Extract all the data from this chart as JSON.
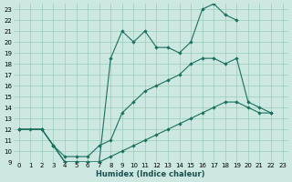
{
  "xlabel": "Humidex (Indice chaleur)",
  "bg_color": "#cce8e0",
  "grid_color": "#99ccbb",
  "line_color": "#1a7060",
  "xlim": [
    -0.5,
    23.5
  ],
  "ylim": [
    9,
    23.5
  ],
  "xticks": [
    0,
    1,
    2,
    3,
    4,
    5,
    6,
    7,
    8,
    9,
    10,
    11,
    12,
    13,
    14,
    15,
    16,
    17,
    18,
    19,
    20,
    21,
    22,
    23
  ],
  "yticks": [
    9,
    10,
    11,
    12,
    13,
    14,
    15,
    16,
    17,
    18,
    19,
    20,
    21,
    22,
    23
  ],
  "line1": {
    "x": [
      0,
      1,
      2,
      3,
      4,
      5,
      6,
      7,
      8,
      9,
      10,
      11,
      12,
      13,
      14,
      15,
      16,
      17,
      18,
      19,
      20,
      21,
      22
    ],
    "y": [
      12,
      12,
      12,
      10.5,
      9,
      9,
      9,
      9,
      9.5,
      10,
      10.5,
      11,
      11.5,
      12,
      12.5,
      13,
      13.5,
      14,
      14.5,
      14.5,
      14,
      13.5,
      13.5
    ]
  },
  "line2": {
    "x": [
      0,
      2,
      3,
      4,
      5,
      6,
      7,
      8,
      9,
      10,
      11,
      12,
      13,
      14,
      15,
      16,
      17,
      18,
      19
    ],
    "y": [
      12,
      12,
      10.5,
      9,
      9,
      9,
      9,
      18.5,
      21,
      20,
      21,
      19.5,
      19.5,
      19,
      20,
      23,
      23.5,
      22.5,
      22
    ]
  },
  "line3": {
    "x": [
      0,
      2,
      3,
      4,
      5,
      6,
      7,
      8,
      9,
      10,
      11,
      12,
      13,
      14,
      15,
      16,
      17,
      18,
      19,
      20,
      21,
      22
    ],
    "y": [
      12,
      12,
      10.5,
      9.5,
      9.5,
      9.5,
      10.5,
      11,
      13.5,
      14.5,
      15.5,
      16,
      16.5,
      17,
      18,
      18.5,
      18.5,
      18,
      18.5,
      14.5,
      14,
      13.5
    ]
  }
}
